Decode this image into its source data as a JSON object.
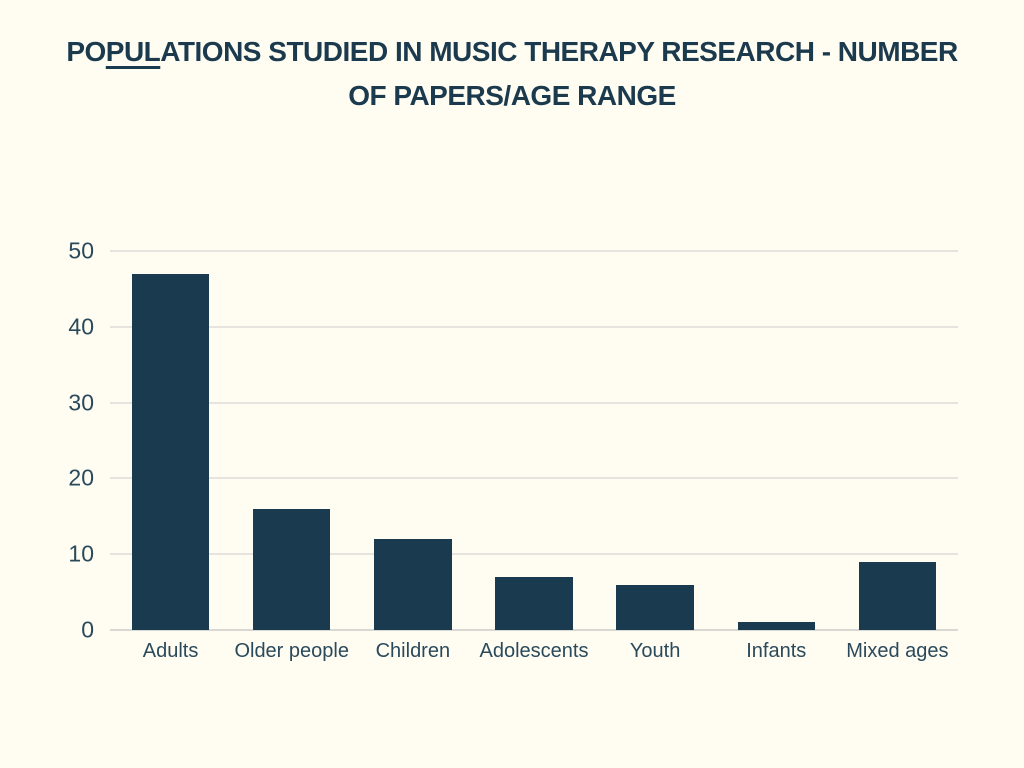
{
  "title": {
    "line1": {
      "pre": "PO",
      "underlined": "PUL",
      "post": "ATIONS STUDIED IN MUSIC THERAPY RESEARCH - NUMBER"
    },
    "line2": "OF PAPERS/AGE RANGE"
  },
  "colors": {
    "background": "#fffcf1",
    "bar": "#1a3a4f",
    "title_text": "#1b3a4e",
    "axis_text": "#2a4a5c",
    "gridline": "#e5e4de",
    "baseline": "#d9d8d2"
  },
  "chart_data": {
    "type": "bar",
    "title": "POPULATIONS STUDIED IN MUSIC THERAPY RESEARCH - NUMBER OF PAPERS/AGE RANGE",
    "categories": [
      "Adults",
      "Older people",
      "Children",
      "Adolescents",
      "Youth",
      "Infants",
      "Mixed ages"
    ],
    "values": [
      47,
      16,
      12,
      7,
      6,
      1,
      9
    ],
    "xlabel": "",
    "ylabel": "",
    "ylim": [
      0,
      50
    ],
    "yticks": [
      0,
      10,
      20,
      30,
      40,
      50
    ],
    "grid": true,
    "legend": false
  }
}
